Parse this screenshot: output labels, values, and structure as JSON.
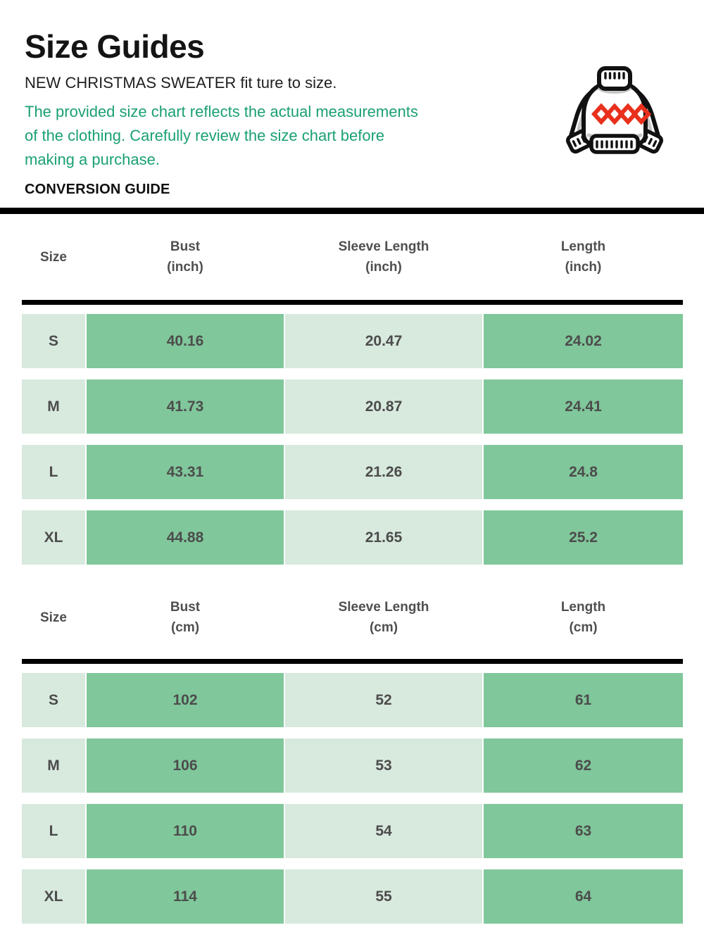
{
  "page": {
    "title": "Size Guides",
    "subtitle": "NEW CHRISTMAS SWEATER fit ture to size.",
    "note_lines": [
      "The provided size chart reflects the actual measurements",
      "of the clothing. Carefully review the size chart before",
      "making a purchase."
    ],
    "section_label": "CONVERSION GUIDE"
  },
  "icon": {
    "name": "christmas-sweater-icon"
  },
  "colors": {
    "note_green": "#1aa073",
    "cell_green": "#80c79b",
    "cell_light": "#d8e9de",
    "divider_black": "#000000",
    "table_text": "#4c4c4c",
    "diamond_red": "#e8301d",
    "outline_black": "#111111"
  },
  "tables": [
    {
      "name": "inches",
      "headers": [
        {
          "label": "Size",
          "unit": ""
        },
        {
          "label": "Bust",
          "unit": "(inch)"
        },
        {
          "label": "Sleeve Length",
          "unit": "(inch)"
        },
        {
          "label": "Length",
          "unit": "(inch)"
        }
      ],
      "rows": [
        {
          "size": "S",
          "values": [
            "40.16",
            "20.47",
            "24.02"
          ]
        },
        {
          "size": "M",
          "values": [
            "41.73",
            "20.87",
            "24.41"
          ]
        },
        {
          "size": "L",
          "values": [
            "43.31",
            "21.26",
            "24.8"
          ]
        },
        {
          "size": "XL",
          "values": [
            "44.88",
            "21.65",
            "25.2"
          ]
        }
      ]
    },
    {
      "name": "centimeters",
      "headers": [
        {
          "label": "Size",
          "unit": ""
        },
        {
          "label": "Bust",
          "unit": "(cm)"
        },
        {
          "label": "Sleeve Length",
          "unit": "(cm)"
        },
        {
          "label": "Length",
          "unit": "(cm)"
        }
      ],
      "rows": [
        {
          "size": "S",
          "values": [
            "102",
            "52",
            "61"
          ]
        },
        {
          "size": "M",
          "values": [
            "106",
            "53",
            "62"
          ]
        },
        {
          "size": "L",
          "values": [
            "110",
            "54",
            "63"
          ]
        },
        {
          "size": "XL",
          "values": [
            "114",
            "55",
            "64"
          ]
        }
      ]
    }
  ]
}
